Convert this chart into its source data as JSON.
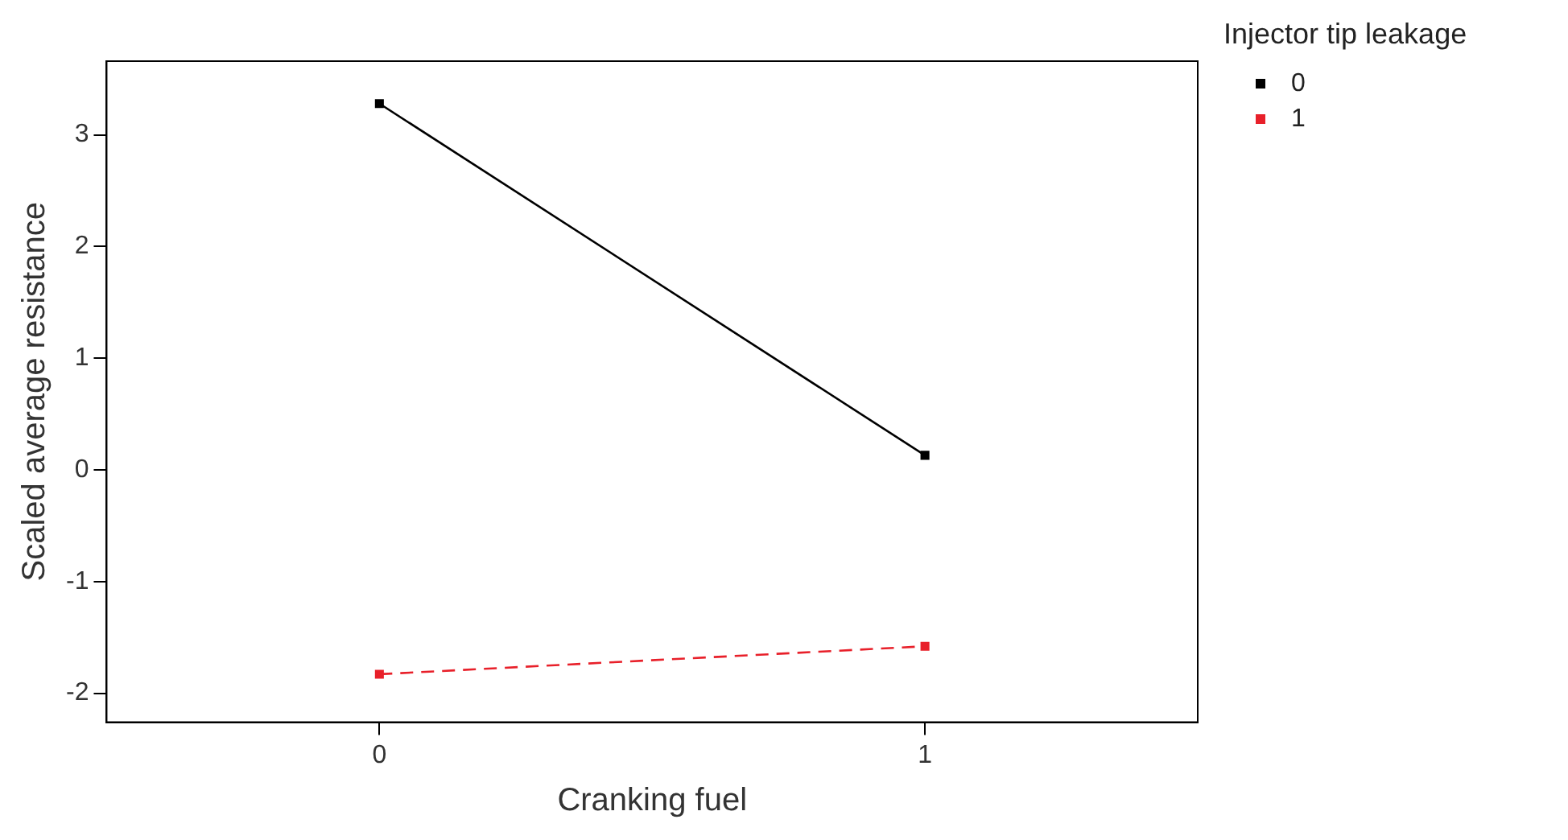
{
  "chart_data": {
    "type": "line",
    "xlabel": "Cranking fuel",
    "ylabel": "Scaled average resistance",
    "legend_title": "Injector tip leakage",
    "legend": "top right",
    "marker": "square",
    "grid": false,
    "categories": [
      "0",
      "1"
    ],
    "ylim": [
      -2.26,
      3.66
    ],
    "yticks": [
      3,
      2,
      1,
      0,
      -1,
      -2
    ],
    "series": [
      {
        "name": "0",
        "color": "#000000",
        "line_style": "solid",
        "values": [
          3.28,
          0.13
        ]
      },
      {
        "name": "1",
        "color": "#e8202a",
        "line_style": "dashed",
        "values": [
          -1.83,
          -1.58
        ]
      }
    ]
  }
}
